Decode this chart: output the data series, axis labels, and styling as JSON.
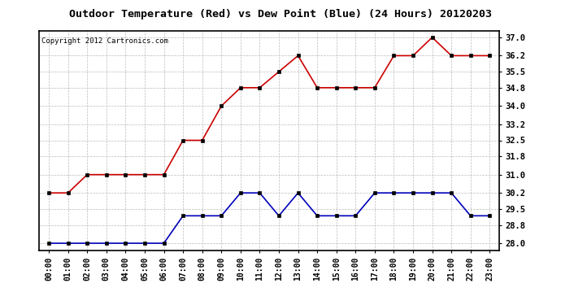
{
  "title": "Outdoor Temperature (Red) vs Dew Point (Blue) (24 Hours) 20120203",
  "copyright_text": "Copyright 2012 Cartronics.com",
  "hours": [
    "00:00",
    "01:00",
    "02:00",
    "03:00",
    "04:00",
    "05:00",
    "06:00",
    "07:00",
    "08:00",
    "09:00",
    "10:00",
    "11:00",
    "12:00",
    "13:00",
    "14:00",
    "15:00",
    "16:00",
    "17:00",
    "18:00",
    "19:00",
    "20:00",
    "21:00",
    "22:00",
    "23:00"
  ],
  "temp_red": [
    30.2,
    30.2,
    31.0,
    31.0,
    31.0,
    31.0,
    31.0,
    32.5,
    32.5,
    34.0,
    34.8,
    34.8,
    35.5,
    36.2,
    34.8,
    34.8,
    34.8,
    34.8,
    36.2,
    36.2,
    37.0,
    36.2,
    36.2,
    36.2
  ],
  "dew_blue": [
    28.0,
    28.0,
    28.0,
    28.0,
    28.0,
    28.0,
    28.0,
    29.2,
    29.2,
    29.2,
    30.2,
    30.2,
    29.2,
    30.2,
    29.2,
    29.2,
    29.2,
    30.2,
    30.2,
    30.2,
    30.2,
    30.2,
    29.2,
    29.2
  ],
  "ylim": [
    27.7,
    37.3
  ],
  "yticks": [
    28.0,
    28.8,
    29.5,
    30.2,
    31.0,
    31.8,
    32.5,
    33.2,
    34.0,
    34.8,
    35.5,
    36.2,
    37.0
  ],
  "red_color": "#cc0000",
  "blue_color": "#0000bb",
  "marker_color_red": "#000000",
  "marker_color_blue": "#000000",
  "bg_color": "#ffffff",
  "plot_bg": "#ffffff",
  "grid_color": "#bbbbbb",
  "title_fontsize": 9.5,
  "copyright_fontsize": 6.5,
  "tick_fontsize": 7,
  "ytick_fontsize": 7.5
}
